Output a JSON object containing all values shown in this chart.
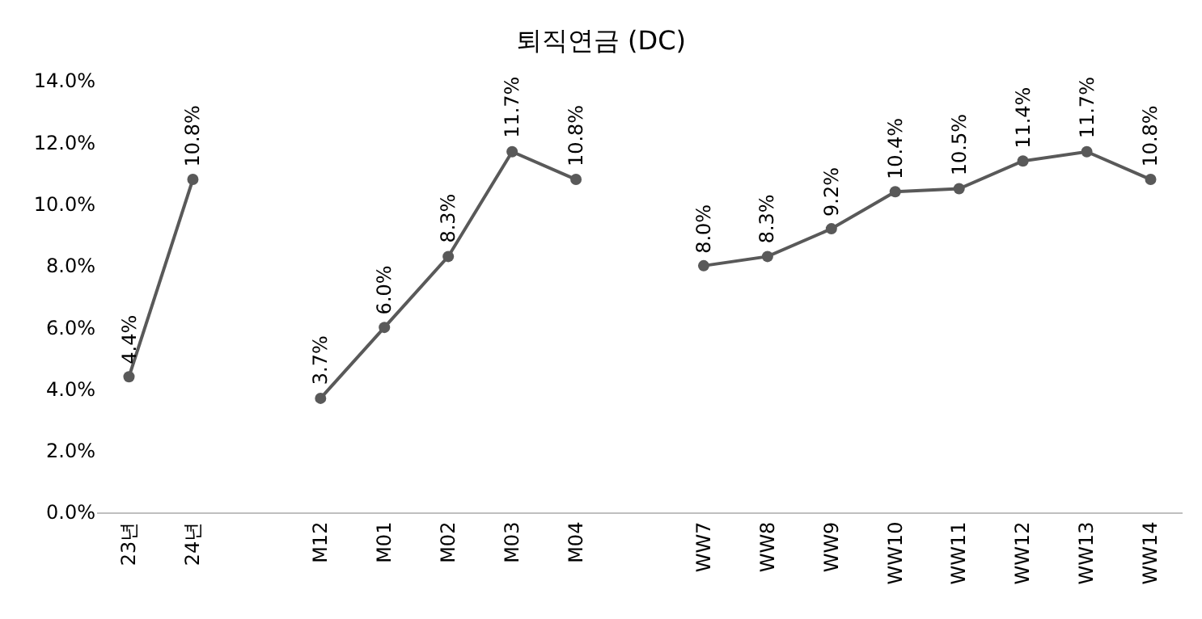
{
  "chart_data": {
    "type": "line",
    "title": "퇴직연금 (DC)",
    "categories": [
      "23년",
      "24년",
      null,
      "M12",
      "M01",
      "M02",
      "M03",
      "M04",
      null,
      "WW7",
      "WW8",
      "WW9",
      "WW10",
      "WW11",
      "WW12",
      "WW13",
      "WW14"
    ],
    "series": [
      {
        "color": "#595959",
        "values": [
          4.4,
          10.8,
          null,
          3.7,
          6.0,
          8.3,
          11.7,
          10.8,
          null,
          8.0,
          8.3,
          9.2,
          10.4,
          10.5,
          11.4,
          11.7,
          10.8
        ],
        "value_labels": [
          "4.4%",
          "10.8%",
          null,
          "3.7%",
          "6.0%",
          "8.3%",
          "11.7%",
          "10.8%",
          null,
          "8.0%",
          "8.3%",
          "9.2%",
          "10.4%",
          "10.5%",
          "11.4%",
          "11.7%",
          "10.8%"
        ]
      }
    ],
    "ylim": [
      0,
      14
    ],
    "yticks": [
      {
        "value": 0,
        "label": "0.0%"
      },
      {
        "value": 2,
        "label": "2.0%"
      },
      {
        "value": 4,
        "label": "4.0%"
      },
      {
        "value": 6,
        "label": "6.0%"
      },
      {
        "value": 8,
        "label": "8.0%"
      },
      {
        "value": 10,
        "label": "10.0%"
      },
      {
        "value": 12,
        "label": "12.0%"
      },
      {
        "value": 14,
        "label": "14.0%"
      }
    ],
    "legend": false,
    "marker": "circle",
    "line_style": "solid"
  }
}
